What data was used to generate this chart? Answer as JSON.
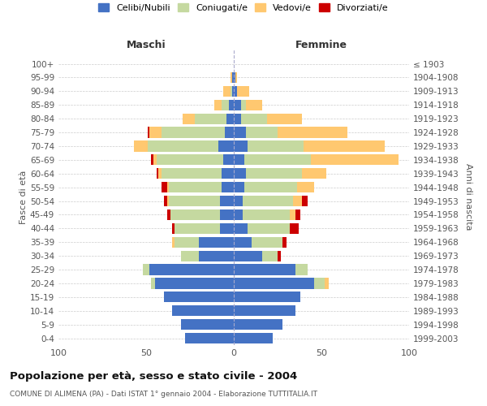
{
  "age_groups": [
    "0-4",
    "5-9",
    "10-14",
    "15-19",
    "20-24",
    "25-29",
    "30-34",
    "35-39",
    "40-44",
    "45-49",
    "50-54",
    "55-59",
    "60-64",
    "65-69",
    "70-74",
    "75-79",
    "80-84",
    "85-89",
    "90-94",
    "95-99",
    "100+"
  ],
  "birth_years": [
    "1999-2003",
    "1994-1998",
    "1989-1993",
    "1984-1988",
    "1979-1983",
    "1974-1978",
    "1969-1973",
    "1964-1968",
    "1959-1963",
    "1954-1958",
    "1949-1953",
    "1944-1948",
    "1939-1943",
    "1934-1938",
    "1929-1933",
    "1924-1928",
    "1919-1923",
    "1914-1918",
    "1909-1913",
    "1904-1908",
    "≤ 1903"
  ],
  "colors": {
    "celibi": "#4472c4",
    "coniugati": "#c5d9a0",
    "vedovi": "#ffc870",
    "divorziati": "#cc0000"
  },
  "maschi": {
    "celibi": [
      28,
      30,
      35,
      40,
      45,
      48,
      20,
      20,
      8,
      8,
      8,
      7,
      7,
      6,
      9,
      5,
      4,
      3,
      1,
      1,
      0
    ],
    "coniugati": [
      0,
      0,
      0,
      0,
      2,
      4,
      10,
      14,
      26,
      28,
      29,
      30,
      34,
      38,
      40,
      36,
      18,
      4,
      1,
      0,
      0
    ],
    "vedovi": [
      0,
      0,
      0,
      0,
      0,
      0,
      0,
      1,
      0,
      0,
      1,
      1,
      2,
      2,
      8,
      7,
      7,
      4,
      4,
      1,
      0
    ],
    "divorziati": [
      0,
      0,
      0,
      0,
      0,
      0,
      0,
      0,
      1,
      2,
      2,
      3,
      1,
      1,
      0,
      1,
      0,
      0,
      0,
      0,
      0
    ]
  },
  "femmine": {
    "celibi": [
      22,
      28,
      35,
      38,
      46,
      35,
      16,
      10,
      8,
      5,
      5,
      6,
      7,
      6,
      8,
      7,
      4,
      4,
      2,
      1,
      0
    ],
    "coniugati": [
      0,
      0,
      0,
      0,
      6,
      7,
      9,
      18,
      24,
      27,
      29,
      30,
      32,
      38,
      32,
      18,
      15,
      3,
      0,
      0,
      0
    ],
    "vedovi": [
      0,
      0,
      0,
      0,
      2,
      0,
      0,
      0,
      0,
      3,
      5,
      10,
      14,
      50,
      46,
      40,
      20,
      9,
      7,
      1,
      0
    ],
    "divorziati": [
      0,
      0,
      0,
      0,
      0,
      0,
      2,
      2,
      5,
      3,
      3,
      0,
      0,
      0,
      0,
      0,
      0,
      0,
      0,
      0,
      0
    ]
  },
  "title": "Popolazione per età, sesso e stato civile - 2004",
  "subtitle": "COMUNE DI ALIMENA (PA) - Dati ISTAT 1° gennaio 2004 - Elaborazione TUTTITALIA.IT",
  "xlabel_left": "Maschi",
  "xlabel_right": "Femmine",
  "ylabel_left": "Fasce di età",
  "ylabel_right": "Anni di nascita",
  "xlim": 100,
  "background_color": "#ffffff",
  "grid_color": "#cccccc"
}
